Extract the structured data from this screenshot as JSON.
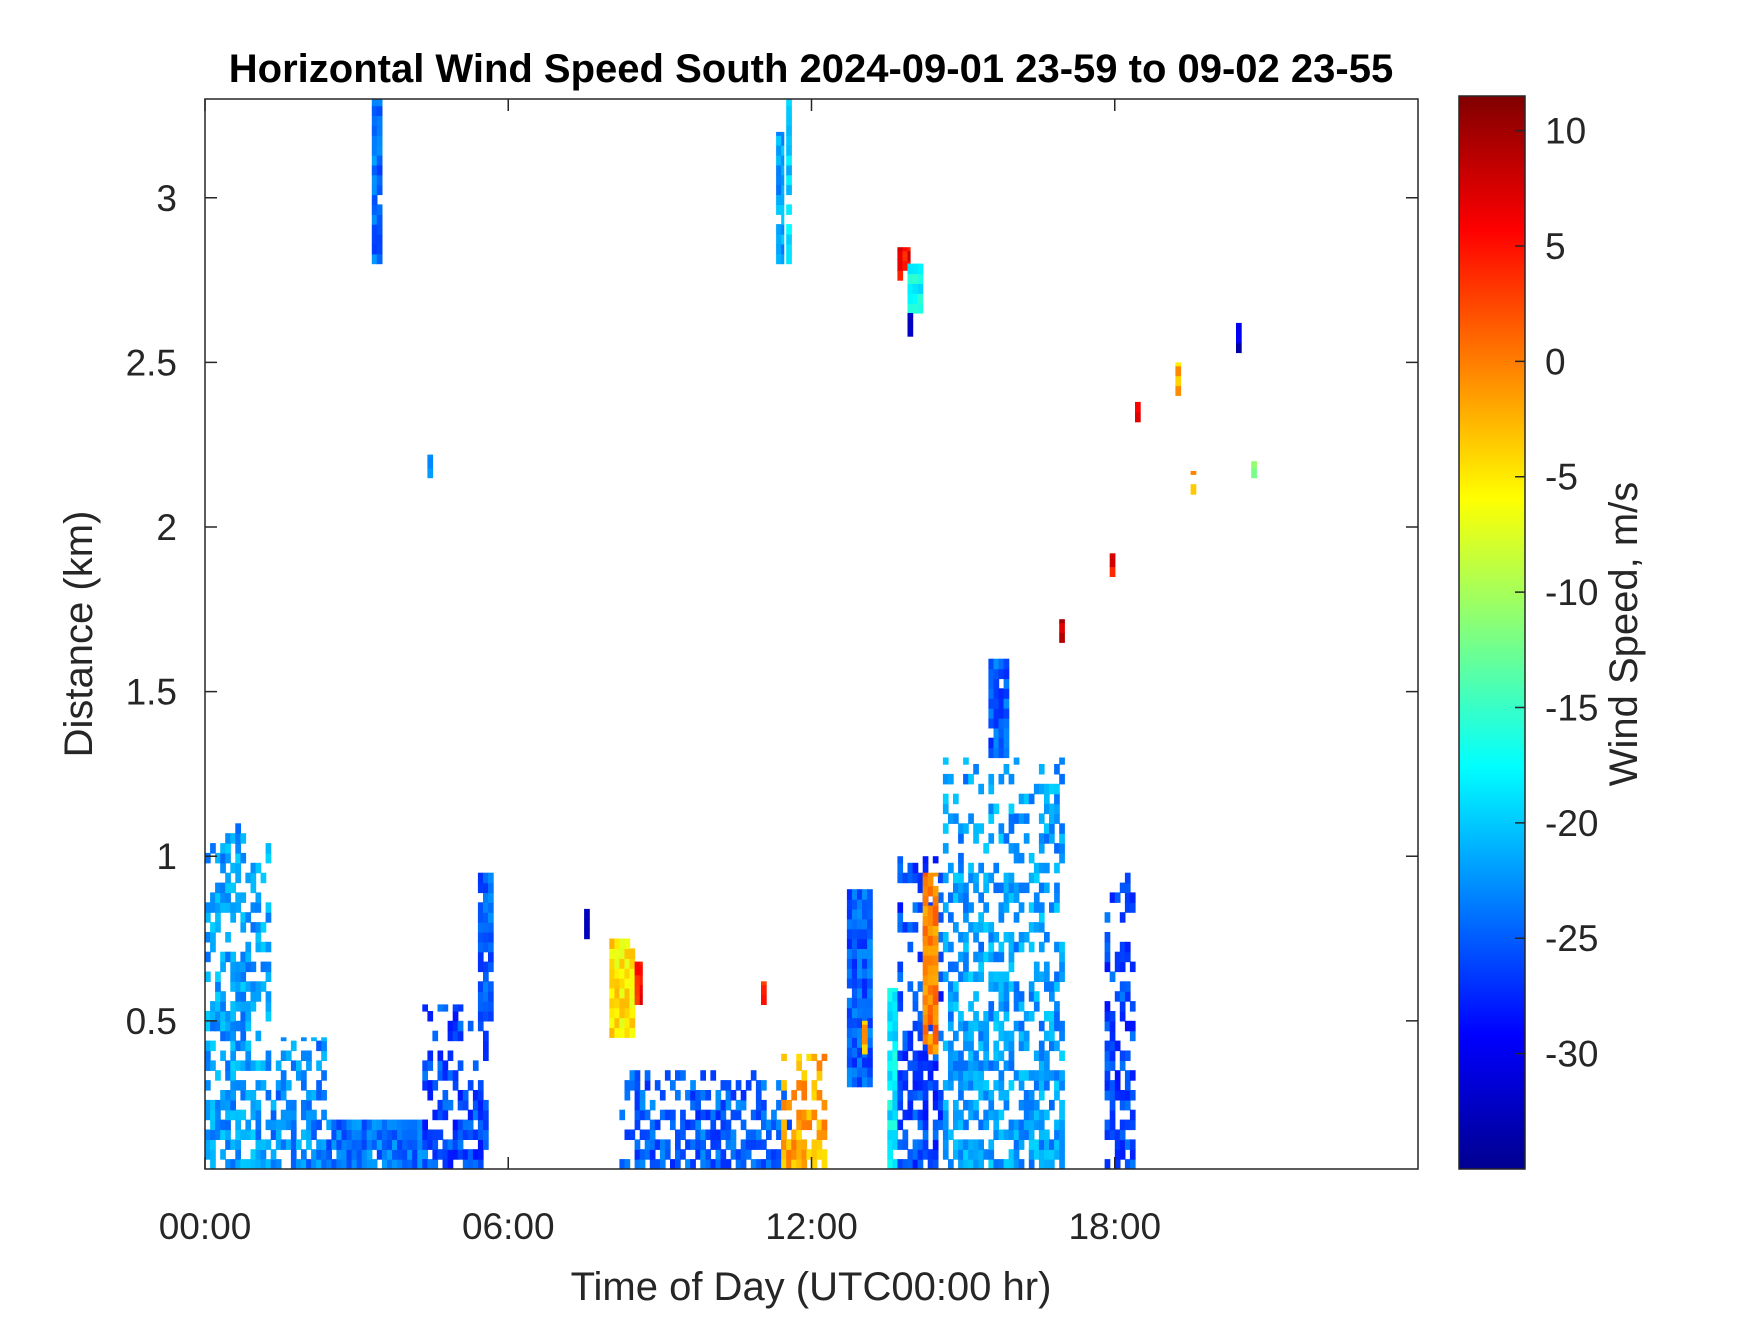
{
  "chart_data": {
    "type": "heatmap",
    "title": "Horizontal Wind Speed South 2024-09-01 23-59 to 09-02 23-55",
    "xlabel": "Time of Day (UTC00:00 hr)",
    "ylabel": "Distance (km)",
    "colorbar_label": "Wind Speed, m/s",
    "x_unit": "hours",
    "xlim": [
      0,
      24
    ],
    "ylim": [
      0.05,
      3.3
    ],
    "clim": [
      -35,
      11.5
    ],
    "colormap": "jet",
    "x_ticks": [
      {
        "value": 0,
        "label": "00:00"
      },
      {
        "value": 6,
        "label": "06:00"
      },
      {
        "value": 12,
        "label": "12:00"
      },
      {
        "value": 18,
        "label": "18:00"
      }
    ],
    "y_ticks": [
      {
        "value": 0.5,
        "label": "0.5"
      },
      {
        "value": 1,
        "label": "1"
      },
      {
        "value": 1.5,
        "label": "1.5"
      },
      {
        "value": 2,
        "label": "2"
      },
      {
        "value": 2.5,
        "label": "2.5"
      },
      {
        "value": 3,
        "label": "3"
      }
    ],
    "colorbar_ticks": [
      {
        "value": 10,
        "label": "10"
      },
      {
        "value": 5,
        "label": "5"
      },
      {
        "value": 0,
        "label": "0"
      },
      {
        "value": -5,
        "label": "-5"
      },
      {
        "value": -10,
        "label": "-10"
      },
      {
        "value": -15,
        "label": "-15"
      },
      {
        "value": -20,
        "label": "-20"
      },
      {
        "value": -25,
        "label": "-25"
      },
      {
        "value": -30,
        "label": "-30"
      }
    ],
    "data_regions": [
      {
        "x": [
          0.0,
          1.3
        ],
        "y": [
          0.05,
          1.1
        ],
        "v": -22
      },
      {
        "x": [
          1.3,
          2.4
        ],
        "y": [
          0.05,
          0.45
        ],
        "v": -23
      },
      {
        "x": [
          2.4,
          4.4
        ],
        "y": [
          0.05,
          0.2
        ],
        "v": -24
      },
      {
        "x": [
          4.3,
          5.6
        ],
        "y": [
          0.05,
          0.55
        ],
        "v": -26
      },
      {
        "x": [
          5.4,
          5.7
        ],
        "y": [
          0.5,
          0.95
        ],
        "v": -25
      },
      {
        "x": [
          3.3,
          3.5
        ],
        "y": [
          2.8,
          3.3
        ],
        "v": -24
      },
      {
        "x": [
          4.4,
          4.5
        ],
        "y": [
          2.15,
          2.22
        ],
        "v": -24
      },
      {
        "x": [
          7.5,
          7.6
        ],
        "y": [
          0.75,
          0.85
        ],
        "v": -30
      },
      {
        "x": [
          8.0,
          8.5
        ],
        "y": [
          0.45,
          0.75
        ],
        "v": -5
      },
      {
        "x": [
          8.5,
          8.65
        ],
        "y": [
          0.55,
          0.68
        ],
        "v": 5
      },
      {
        "x": [
          8.2,
          11.6
        ],
        "y": [
          0.05,
          0.35
        ],
        "v": -25
      },
      {
        "x": [
          11.0,
          11.1
        ],
        "y": [
          0.55,
          0.62
        ],
        "v": 5
      },
      {
        "x": [
          11.3,
          11.45
        ],
        "y": [
          2.8,
          3.2
        ],
        "v": -22
      },
      {
        "x": [
          11.5,
          11.6
        ],
        "y": [
          2.8,
          3.3
        ],
        "v": -20
      },
      {
        "x": [
          11.4,
          12.3
        ],
        "y": [
          0.05,
          0.4
        ],
        "v": -2
      },
      {
        "x": [
          12.7,
          13.2
        ],
        "y": [
          0.3,
          0.9
        ],
        "v": -25
      },
      {
        "x": [
          13.0,
          13.1
        ],
        "y": [
          0.4,
          0.5
        ],
        "v": -3
      },
      {
        "x": [
          13.5,
          13.7
        ],
        "y": [
          0.05,
          0.6
        ],
        "v": -18
      },
      {
        "x": [
          13.7,
          14.6
        ],
        "y": [
          0.05,
          1.0
        ],
        "v": -26
      },
      {
        "x": [
          14.2,
          14.5
        ],
        "y": [
          0.4,
          0.95
        ],
        "v": 0
      },
      {
        "x": [
          13.7,
          13.95
        ],
        "y": [
          2.75,
          2.85
        ],
        "v": 6
      },
      {
        "x": [
          13.9,
          14.2
        ],
        "y": [
          2.65,
          2.8
        ],
        "v": -17
      },
      {
        "x": [
          13.9,
          14.0
        ],
        "y": [
          2.58,
          2.65
        ],
        "v": -31
      },
      {
        "x": [
          14.6,
          17.0
        ],
        "y": [
          0.05,
          1.3
        ],
        "v": -22
      },
      {
        "x": [
          15.5,
          15.9
        ],
        "y": [
          1.3,
          1.6
        ],
        "v": -25
      },
      {
        "x": [
          16.9,
          17.0
        ],
        "y": [
          1.65,
          1.72
        ],
        "v": 8
      },
      {
        "x": [
          17.8,
          18.4
        ],
        "y": [
          0.05,
          0.95
        ],
        "v": -26
      },
      {
        "x": [
          17.9,
          18.0
        ],
        "y": [
          1.85,
          1.92
        ],
        "v": 6
      },
      {
        "x": [
          18.4,
          18.5
        ],
        "y": [
          2.32,
          2.38
        ],
        "v": 8
      },
      {
        "x": [
          19.2,
          19.3
        ],
        "y": [
          2.4,
          2.5
        ],
        "v": -3
      },
      {
        "x": [
          19.5,
          19.6
        ],
        "y": [
          2.1,
          2.17
        ],
        "v": -2
      },
      {
        "x": [
          20.4,
          20.5
        ],
        "y": [
          2.5,
          2.62
        ],
        "v": -32
      },
      {
        "x": [
          20.7,
          20.8
        ],
        "y": [
          2.15,
          2.2
        ],
        "v": -12
      }
    ]
  }
}
